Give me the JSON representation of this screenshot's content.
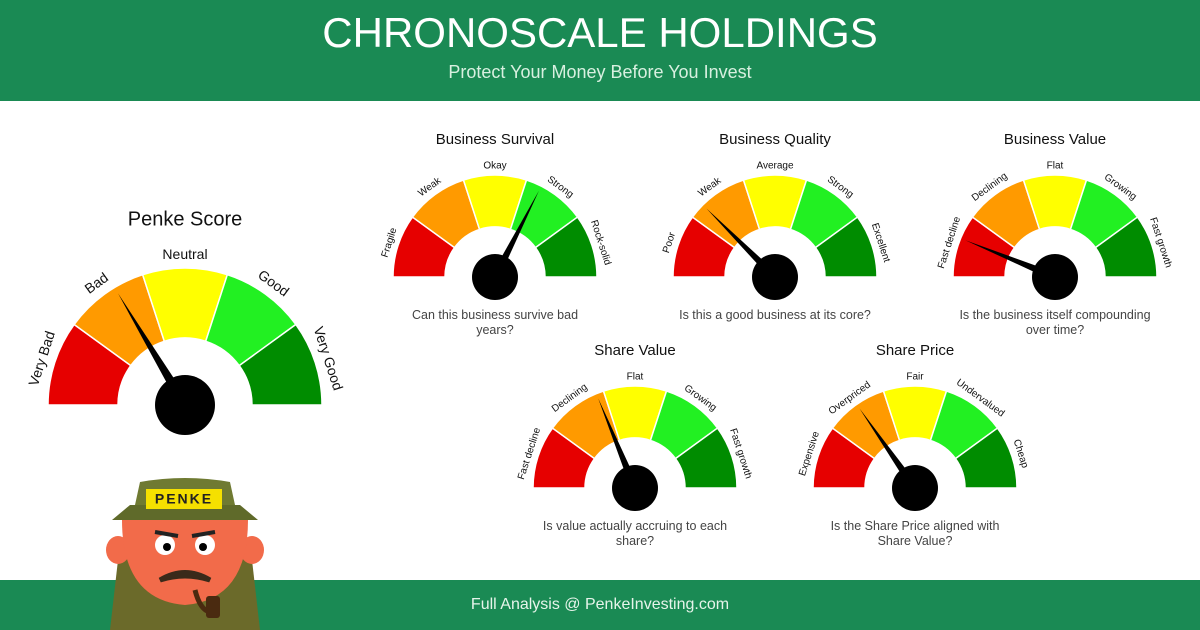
{
  "header": {
    "title": "CHRONOSCALE HOLDINGS",
    "subtitle": "Protect Your Money Before You Invest"
  },
  "main_gauge": {
    "title": "Penke Score",
    "labels": [
      "Very Bad",
      "Bad",
      "Neutral",
      "Good",
      "Very Good"
    ],
    "needle": 1.64
  },
  "gauges": [
    {
      "title": "Business Survival",
      "labels": [
        "Fragile",
        "Weak",
        "Okay",
        "Strong",
        "Rock-solid"
      ],
      "question": "Can this business survive bad years?",
      "needle": 3.25
    },
    {
      "title": "Business Quality",
      "labels": [
        "Poor",
        "Weak",
        "Average",
        "Strong",
        "Excellent"
      ],
      "question": "Is this a good business at its core?",
      "needle": 1.25
    },
    {
      "title": "Business Value",
      "labels": [
        "Fast decline",
        "Declining",
        "Flat",
        "Growing",
        "Fast growth"
      ],
      "question": "Is the business itself compounding over time?",
      "needle": 0.62
    },
    {
      "title": "Share Value",
      "labels": [
        "Fast decline",
        "Declining",
        "Flat",
        "Growing",
        "Fast growth"
      ],
      "question": "Is value actually accruing to each share?",
      "needle": 1.88
    },
    {
      "title": "Share Price",
      "labels": [
        "Expensive",
        "Overpriced",
        "Fair",
        "Undervalued",
        "Cheap"
      ],
      "question": "Is the Share Price aligned with Share Value?",
      "needle": 1.53
    }
  ],
  "mascot": {
    "hat": "PENKE"
  },
  "footer": "Full Analysis @ PenkeInvesting.com"
}
